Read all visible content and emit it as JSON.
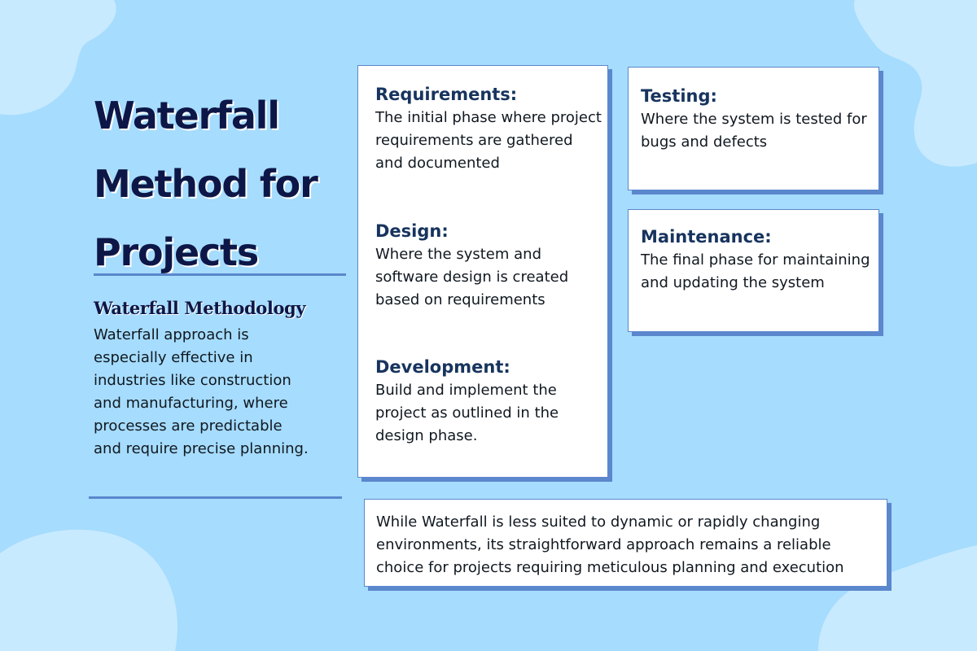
{
  "title": "Waterfall Method for Projects",
  "methodology": {
    "heading": "Waterfall Methodology",
    "body": "Waterfall approach is especially effective in industries like construction and manufacturing, where processes are predictable and require precise planning."
  },
  "phases": [
    {
      "title": "Requirements:",
      "description": "The initial phase where project requirements are gathered and documented"
    },
    {
      "title": "Design:",
      "description": "Where the system and software design is created based on requirements"
    },
    {
      "title": "Development:",
      "description": "Build and implement the project as outlined in the design phase."
    },
    {
      "title": "Testing:",
      "description": "Where the system is tested for bugs and defects"
    },
    {
      "title": "Maintenance:",
      "description": "The final phase for maintaining and updating the system"
    }
  ],
  "summary": "While Waterfall is less suited to dynamic or rapidly changing environments, its straightforward approach remains a reliable choice for projects requiring meticulous planning and execution",
  "colors": {
    "background": "#a6dcfd",
    "blob": "#c8eafe",
    "heading": "#0d1747",
    "phase_heading": "#17345e",
    "card_shadow": "#5b87cd"
  }
}
